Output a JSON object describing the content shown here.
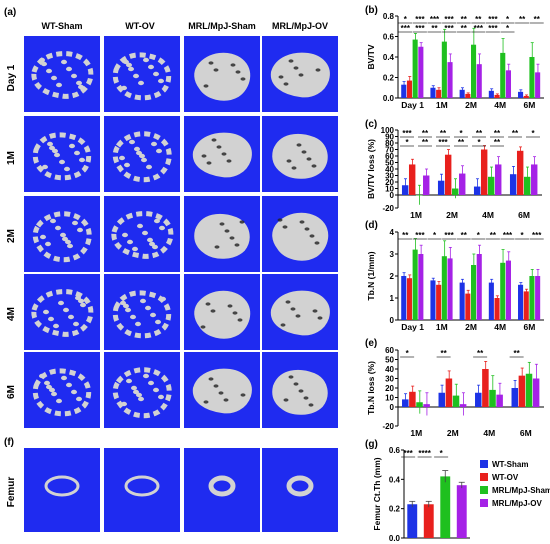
{
  "figure": {
    "panel_labels": [
      "(a)",
      "(b)",
      "(c)",
      "(d)",
      "(e)",
      "(f)",
      "(g)"
    ],
    "group_headers": [
      "WT-Sham",
      "WT-OV",
      "MRL/MpJ-Sham",
      "MRL/MpJ-OV"
    ],
    "row_labels": [
      "Day 1",
      "1M",
      "2M",
      "4M",
      "6M"
    ],
    "femur_label": "Femur"
  },
  "colors": {
    "wt_sham": "#1d33e6",
    "wt_ov": "#e8201d",
    "mrl_sham": "#1fc01f",
    "mrl_ov": "#a522e6",
    "micro_ct_bg": "#1f2bf0",
    "bone": "#d2d2d2"
  },
  "legend": {
    "position": "lower-right",
    "entries": [
      "WT-Sham",
      "WT-OV",
      "MRL/MpJ-Sham",
      "MRL/MpJ-OV"
    ]
  },
  "chart_data": [
    {
      "panel": "(b)",
      "type": "bar",
      "ylabel": "BV/TV",
      "ylim": [
        0,
        0.8
      ],
      "yticks": [
        "0.0",
        "0.2",
        "0.4",
        "0.6",
        "0.8"
      ],
      "categories": [
        "Day 1",
        "1M",
        "2M",
        "4M",
        "6M"
      ],
      "series": [
        {
          "name": "WT-Sham",
          "values": [
            0.13,
            0.1,
            0.08,
            0.07,
            0.06
          ],
          "errors": [
            0.03,
            0.02,
            0.02,
            0.02,
            0.02
          ]
        },
        {
          "name": "WT-OV",
          "values": [
            0.17,
            0.08,
            0.04,
            0.03,
            0.02
          ],
          "errors": [
            0.04,
            0.02,
            0.01,
            0.01,
            0.01
          ]
        },
        {
          "name": "MRL/MpJ-Sham",
          "values": [
            0.57,
            0.55,
            0.52,
            0.44,
            0.4
          ],
          "errors": [
            0.06,
            0.12,
            0.16,
            0.14,
            0.14
          ]
        },
        {
          "name": "MRL/MpJ-OV",
          "values": [
            0.5,
            0.35,
            0.33,
            0.27,
            0.25
          ],
          "errors": [
            0.04,
            0.08,
            0.1,
            0.06,
            0.08
          ]
        }
      ],
      "significance": [
        "*",
        "***",
        "***",
        "***",
        "***",
        "***",
        "**",
        "***",
        "**",
        "**",
        "**",
        "***",
        "***",
        "*",
        "***",
        "*",
        "**",
        "**"
      ]
    },
    {
      "panel": "(c)",
      "type": "bar",
      "ylabel": "BV/TV loss (%)",
      "ylim": [
        -20,
        100
      ],
      "yticks": [
        "-20",
        "0",
        "10",
        "20",
        "30",
        "40",
        "50",
        "60",
        "70",
        "80",
        "90",
        "100"
      ],
      "categories": [
        "1M",
        "2M",
        "4M",
        "6M"
      ],
      "series": [
        {
          "name": "WT-Sham",
          "values": [
            15,
            22,
            13,
            32
          ],
          "errors": [
            10,
            10,
            12,
            12
          ]
        },
        {
          "name": "WT-OV",
          "values": [
            47,
            62,
            70,
            68
          ],
          "errors": [
            8,
            8,
            6,
            6
          ]
        },
        {
          "name": "MRL/MpJ-Sham",
          "values": [
            0,
            10,
            28,
            28
          ],
          "errors": [
            15,
            15,
            15,
            15
          ]
        },
        {
          "name": "MRL/MpJ-OV",
          "values": [
            30,
            33,
            47,
            47
          ],
          "errors": [
            10,
            12,
            12,
            12
          ]
        }
      ],
      "significance": [
        "***",
        "**",
        "*",
        "**",
        "**",
        "*",
        "***",
        "**",
        "**",
        "**",
        "*",
        "**",
        "**",
        "*"
      ]
    },
    {
      "panel": "(d)",
      "type": "bar",
      "ylabel": "Tb.N (1/mm)",
      "ylim": [
        0,
        4
      ],
      "yticks": [
        "0",
        "1",
        "2",
        "3",
        "4"
      ],
      "categories": [
        "Day 1",
        "1M",
        "2M",
        "4M",
        "6M"
      ],
      "series": [
        {
          "name": "WT-Sham",
          "values": [
            2.0,
            1.8,
            1.7,
            1.7,
            1.6
          ],
          "errors": [
            0.15,
            0.1,
            0.15,
            0.15,
            0.1
          ]
        },
        {
          "name": "WT-OV",
          "values": [
            1.9,
            1.6,
            1.2,
            1.0,
            1.3
          ],
          "errors": [
            0.15,
            0.15,
            0.15,
            0.1,
            0.1
          ]
        },
        {
          "name": "MRL/MpJ-Sham",
          "values": [
            3.2,
            2.9,
            2.5,
            2.6,
            2.0
          ],
          "errors": [
            0.5,
            0.7,
            0.5,
            0.6,
            0.3
          ]
        },
        {
          "name": "MRL/MpJ-OV",
          "values": [
            3.0,
            2.8,
            3.0,
            2.7,
            2.0
          ],
          "errors": [
            0.4,
            0.5,
            0.4,
            0.4,
            0.3
          ]
        }
      ],
      "significance": [
        "**",
        "***",
        "*",
        "***",
        "**",
        "*",
        "**",
        "***",
        "*",
        "***"
      ]
    },
    {
      "panel": "(e)",
      "type": "bar",
      "ylabel": "Tb.N loss (%)",
      "ylim": [
        -20,
        60
      ],
      "yticks": [
        "-20",
        "0",
        "10",
        "20",
        "30",
        "40",
        "50",
        "60"
      ],
      "categories": [
        "1M",
        "2M",
        "4M",
        "6M"
      ],
      "series": [
        {
          "name": "WT-Sham",
          "values": [
            8,
            15,
            15,
            20
          ],
          "errors": [
            6,
            8,
            8,
            8
          ]
        },
        {
          "name": "WT-OV",
          "values": [
            16,
            30,
            40,
            33
          ],
          "errors": [
            6,
            8,
            8,
            8
          ]
        },
        {
          "name": "MRL/MpJ-Sham",
          "values": [
            5,
            12,
            18,
            35
          ],
          "errors": [
            12,
            12,
            15,
            12
          ]
        },
        {
          "name": "MRL/MpJ-OV",
          "values": [
            3,
            3,
            13,
            30
          ],
          "errors": [
            12,
            12,
            12,
            15
          ]
        }
      ],
      "significance": [
        "*",
        "**",
        "**",
        "**"
      ]
    },
    {
      "panel": "(g)",
      "type": "bar",
      "ylabel": "Femur Ct.Th (mm)",
      "ylim": [
        0,
        0.6
      ],
      "yticks": [
        "0.0",
        "0.2",
        "0.4",
        "0.6"
      ],
      "categories": [
        "WT-Sham",
        "WT-OV",
        "MRL/MpJ-Sham",
        "MRL/MpJ-OV"
      ],
      "values": [
        0.23,
        0.23,
        0.42,
        0.36
      ],
      "errors": [
        0.02,
        0.02,
        0.04,
        0.02
      ],
      "significance": [
        "***",
        "****",
        "*"
      ]
    }
  ]
}
